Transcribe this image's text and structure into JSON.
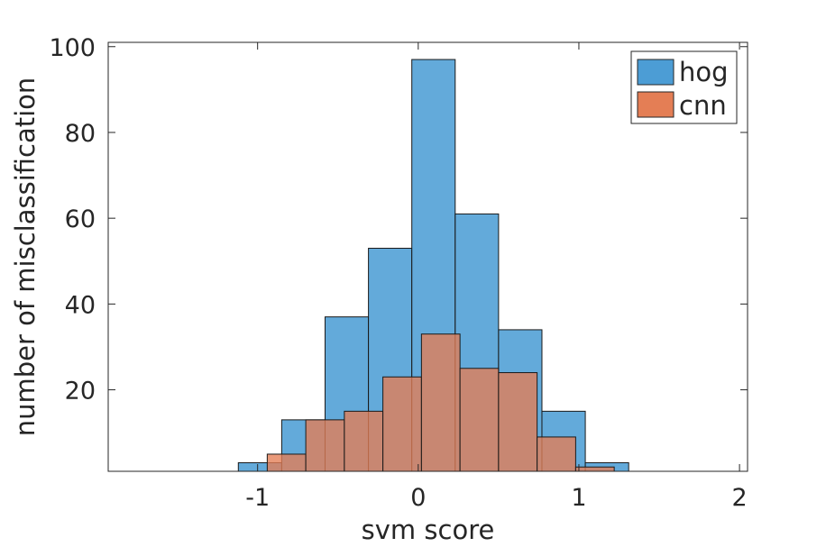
{
  "chart_data": {
    "type": "bar",
    "title": "",
    "xlabel": "svm score",
    "ylabel": "number of misclassification",
    "xlim": [
      -1.93,
      2.05
    ],
    "ylim": [
      1,
      101
    ],
    "xticks": [
      -1,
      0,
      1,
      2
    ],
    "yticks": [
      20,
      40,
      60,
      80,
      100
    ],
    "xtick_labels": [
      "-1",
      "0",
      "1",
      "2"
    ],
    "ytick_labels": [
      "20",
      "40",
      "60",
      "80",
      "100"
    ],
    "legend_position": "top-right",
    "grid": false,
    "series": [
      {
        "name": "hog",
        "color": "#4c9dd5",
        "bins": [
          {
            "x0": -1.12,
            "x1": -0.85,
            "value": 3
          },
          {
            "x0": -0.85,
            "x1": -0.58,
            "value": 13
          },
          {
            "x0": -0.58,
            "x1": -0.31,
            "value": 37
          },
          {
            "x0": -0.31,
            "x1": -0.04,
            "value": 53
          },
          {
            "x0": -0.04,
            "x1": 0.23,
            "value": 97
          },
          {
            "x0": 0.23,
            "x1": 0.5,
            "value": 61
          },
          {
            "x0": 0.5,
            "x1": 0.77,
            "value": 34
          },
          {
            "x0": 0.77,
            "x1": 1.04,
            "value": 15
          },
          {
            "x0": 1.04,
            "x1": 1.31,
            "value": 3
          }
        ]
      },
      {
        "name": "cnn",
        "color": "#e47e55",
        "bins": [
          {
            "x0": -0.94,
            "x1": -0.7,
            "value": 5
          },
          {
            "x0": -0.7,
            "x1": -0.46,
            "value": 13
          },
          {
            "x0": -0.46,
            "x1": -0.22,
            "value": 15
          },
          {
            "x0": -0.22,
            "x1": 0.02,
            "value": 23
          },
          {
            "x0": 0.02,
            "x1": 0.26,
            "value": 33
          },
          {
            "x0": 0.26,
            "x1": 0.5,
            "value": 25
          },
          {
            "x0": 0.5,
            "x1": 0.74,
            "value": 24
          },
          {
            "x0": 0.74,
            "x1": 0.98,
            "value": 9
          },
          {
            "x0": 0.98,
            "x1": 1.22,
            "value": 2
          }
        ]
      }
    ]
  }
}
